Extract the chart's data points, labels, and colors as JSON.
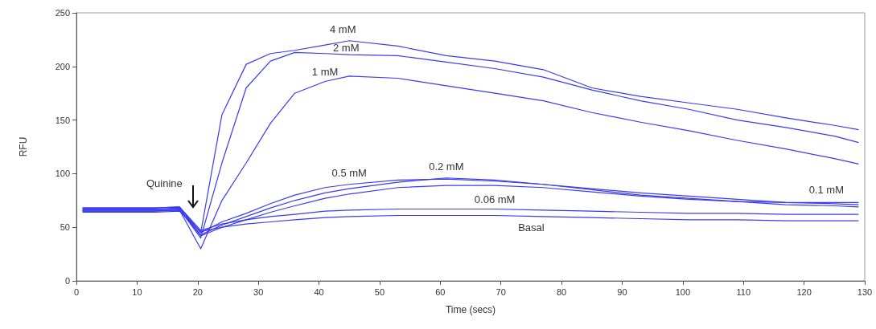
{
  "chart_data": {
    "type": "line",
    "xlabel": "Time (secs)",
    "ylabel": "RFU",
    "x": [
      1,
      5,
      9,
      13,
      17,
      20.5,
      24,
      28,
      32,
      36,
      41,
      45,
      53,
      61,
      69,
      77,
      85,
      93,
      101,
      109,
      117,
      125,
      129
    ],
    "series": [
      {
        "name": "4 mM",
        "color": "#3a3aee",
        "values": [
          67,
          67,
          67,
          67,
          68,
          45,
          155,
          202,
          212,
          215,
          220,
          224,
          219,
          210,
          205,
          197,
          180,
          172,
          166,
          160,
          152,
          145,
          141
        ]
      },
      {
        "name": "2 mM",
        "color": "#3a3aee",
        "values": [
          66,
          66,
          66,
          66,
          67,
          40,
          110,
          180,
          205,
          213,
          212,
          211,
          210,
          204,
          198,
          190,
          178,
          168,
          160,
          150,
          143,
          135,
          129
        ]
      },
      {
        "name": "1 mM",
        "color": "#3a3aee",
        "values": [
          65,
          65,
          65,
          65,
          66,
          30,
          75,
          110,
          147,
          175,
          186,
          191,
          189,
          182,
          175,
          168,
          157,
          148,
          140,
          131,
          123,
          114,
          109
        ]
      },
      {
        "name": "0.5 mM",
        "color": "#3a3aee",
        "values": [
          68,
          68,
          68,
          68,
          69,
          45,
          55,
          63,
          72,
          80,
          87,
          90,
          94,
          95,
          93,
          90,
          86,
          82,
          79,
          76,
          73,
          72,
          71
        ]
      },
      {
        "name": "0.2 mM",
        "color": "#3a3aee",
        "values": [
          66,
          66,
          66,
          66,
          67,
          43,
          52,
          60,
          68,
          75,
          82,
          86,
          92,
          96,
          94,
          90,
          85,
          80,
          77,
          74,
          71,
          70,
          69
        ]
      },
      {
        "name": "0.1 mM",
        "color": "#3a3aee",
        "values": [
          65,
          65,
          65,
          65,
          66,
          42,
          50,
          57,
          64,
          70,
          77,
          81,
          87,
          89,
          89,
          87,
          83,
          79,
          76,
          74,
          73,
          73,
          73
        ]
      },
      {
        "name": "0.06 mM",
        "color": "#3a3aee",
        "values": [
          68,
          68,
          68,
          68,
          69,
          47,
          53,
          57,
          60,
          62,
          65,
          66,
          67,
          67,
          67,
          66,
          65,
          64,
          63,
          63,
          62,
          62,
          62
        ]
      },
      {
        "name": "Basal",
        "color": "#3a3aee",
        "values": [
          64,
          64,
          64,
          64,
          65,
          46,
          50,
          53,
          55,
          57,
          59,
          60,
          61,
          61,
          61,
          60,
          59,
          58,
          57,
          57,
          56,
          56,
          56
        ]
      }
    ],
    "annotations": [
      "Quinine"
    ],
    "xlim": [
      0,
      130
    ],
    "xticks": [
      0,
      10,
      20,
      30,
      40,
      50,
      60,
      70,
      80,
      90,
      100,
      110,
      120,
      130
    ],
    "ylim": [
      0,
      250
    ],
    "yticks": [
      0,
      50,
      100,
      150,
      200,
      250
    ],
    "grid": false,
    "line_style": "solid"
  }
}
